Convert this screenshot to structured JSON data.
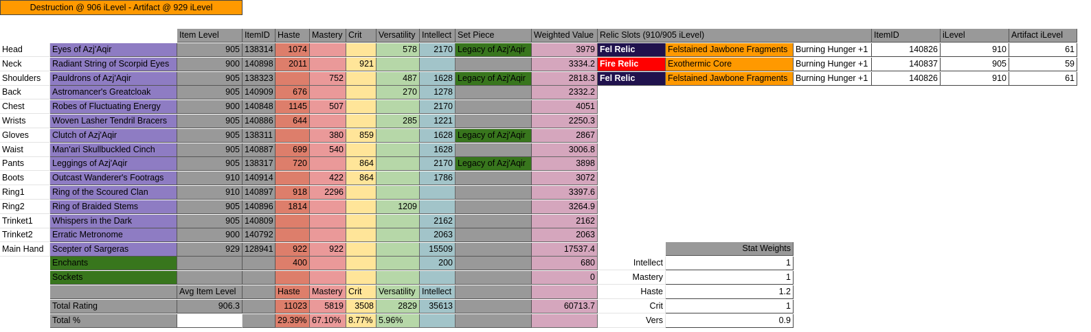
{
  "title": "Destruction @ 906 iLevel - Artifact @ 929 iLevel",
  "headers": {
    "item_level": "Item Level",
    "itemid": "ItemID",
    "haste": "Haste",
    "mastery": "Mastery",
    "crit": "Crit",
    "versatility": "Versatility",
    "intellect": "Intellect",
    "set_piece": "Set Piece",
    "weighted_value": "Weighted Value"
  },
  "gear": [
    {
      "slot": "Head",
      "name": "Eyes of Azj'Aqir",
      "ilvl": "905",
      "id": "138314",
      "haste": "1074",
      "mastery": "",
      "crit": "",
      "vers": "578",
      "intel": "2170",
      "set": "Legacy of Azj'Aqir",
      "weighted": "3979"
    },
    {
      "slot": "Neck",
      "name": "Radiant String of Scorpid Eyes",
      "ilvl": "900",
      "id": "140898",
      "haste": "2011",
      "mastery": "",
      "crit": "921",
      "vers": "",
      "intel": "",
      "set": "",
      "weighted": "3334.2"
    },
    {
      "slot": "Shoulders",
      "name": "Pauldrons of Azj'Aqir",
      "ilvl": "905",
      "id": "138323",
      "haste": "",
      "mastery": "752",
      "crit": "",
      "vers": "487",
      "intel": "1628",
      "set": "Legacy of Azj'Aqir",
      "weighted": "2818.3"
    },
    {
      "slot": "Back",
      "name": "Astromancer's Greatcloak",
      "ilvl": "905",
      "id": "140909",
      "haste": "676",
      "mastery": "",
      "crit": "",
      "vers": "270",
      "intel": "1278",
      "set": "",
      "weighted": "2332.2"
    },
    {
      "slot": "Chest",
      "name": "Robes of Fluctuating Energy",
      "ilvl": "900",
      "id": "140848",
      "haste": "1145",
      "mastery": "507",
      "crit": "",
      "vers": "",
      "intel": "2170",
      "set": "",
      "weighted": "4051"
    },
    {
      "slot": "Wrists",
      "name": "Woven Lasher Tendril Bracers",
      "ilvl": "905",
      "id": "140886",
      "haste": "644",
      "mastery": "",
      "crit": "",
      "vers": "285",
      "intel": "1221",
      "set": "",
      "weighted": "2250.3"
    },
    {
      "slot": "Gloves",
      "name": "Clutch of Azj'Aqir",
      "ilvl": "905",
      "id": "138311",
      "haste": "",
      "mastery": "380",
      "crit": "859",
      "vers": "",
      "intel": "1628",
      "set": "Legacy of Azj'Aqir",
      "weighted": "2867"
    },
    {
      "slot": "Waist",
      "name": "Man'ari Skullbuckled Cinch",
      "ilvl": "905",
      "id": "140887",
      "haste": "699",
      "mastery": "540",
      "crit": "",
      "vers": "",
      "intel": "1628",
      "set": "",
      "weighted": "3006.8"
    },
    {
      "slot": "Pants",
      "name": "Leggings of Azj'Aqir",
      "ilvl": "905",
      "id": "138317",
      "haste": "720",
      "mastery": "",
      "crit": "864",
      "vers": "",
      "intel": "2170",
      "set": "Legacy of Azj'Aqir",
      "weighted": "3898"
    },
    {
      "slot": "Boots",
      "name": "Outcast Wanderer's Footrags",
      "ilvl": "910",
      "id": "140914",
      "haste": "",
      "mastery": "422",
      "crit": "864",
      "vers": "",
      "intel": "1786",
      "set": "",
      "weighted": "3072"
    },
    {
      "slot": "Ring1",
      "name": "Ring of the Scoured Clan",
      "ilvl": "910",
      "id": "140897",
      "haste": "918",
      "mastery": "2296",
      "crit": "",
      "vers": "",
      "intel": "",
      "set": "",
      "weighted": "3397.6"
    },
    {
      "slot": "Ring2",
      "name": "Ring of Braided Stems",
      "ilvl": "905",
      "id": "140896",
      "haste": "1814",
      "mastery": "",
      "crit": "",
      "vers": "1209",
      "intel": "",
      "set": "",
      "weighted": "3264.9"
    },
    {
      "slot": "Trinket1",
      "name": "Whispers in the Dark",
      "ilvl": "905",
      "id": "140809",
      "haste": "",
      "mastery": "",
      "crit": "",
      "vers": "",
      "intel": "2162",
      "set": "",
      "weighted": "2162"
    },
    {
      "slot": "Trinket2",
      "name": "Erratic Metronome",
      "ilvl": "900",
      "id": "140792",
      "haste": "",
      "mastery": "",
      "crit": "",
      "vers": "",
      "intel": "2063",
      "set": "",
      "weighted": "2063"
    },
    {
      "slot": "Main Hand",
      "name": "Scepter of Sargeras",
      "ilvl": "929",
      "id": "128941",
      "haste": "922",
      "mastery": "922",
      "crit": "",
      "vers": "",
      "intel": "15509",
      "set": "",
      "weighted": "17537.4"
    }
  ],
  "enchants": {
    "label": "Enchants",
    "haste": "400",
    "intel": "200",
    "weighted": "680"
  },
  "sockets": {
    "label": "Sockets",
    "weighted": "0"
  },
  "summary": {
    "avg_label": "Avg Item Level",
    "avg_value": "906.3",
    "haste": "Haste",
    "mastery": "Mastery",
    "crit": "Crit",
    "vers": "Versatility",
    "intel": "Intellect",
    "total_rating_label": "Total Rating",
    "total_haste": "11023",
    "total_mastery": "5819",
    "total_crit": "3508",
    "total_vers": "2829",
    "total_intel": "35613",
    "total_weighted": "60713.7",
    "total_pct_label": "Total %",
    "pct_haste": "29.39%",
    "pct_mastery": "67.10%",
    "pct_crit": "8.77%",
    "pct_vers": "5.96%"
  },
  "relics": {
    "header": "Relic Slots (910/905 iLevel)",
    "itemid_header": "ItemID",
    "ilevel_header": "iLevel",
    "artifact_header": "Artifact iLevel",
    "rows": [
      {
        "type": "Fel Relic",
        "name": "Felstained Jawbone Fragments",
        "trait": "Burning Hunger +1",
        "id": "140826",
        "ilvl": "910",
        "art": "61"
      },
      {
        "type": "Fire Relic",
        "name": "Exothermic Core",
        "trait": "Burning Hunger +1",
        "id": "140837",
        "ilvl": "905",
        "art": "59"
      },
      {
        "type": "Fel Relic",
        "name": "Felstained Jawbone Fragments",
        "trait": "Burning Hunger +1",
        "id": "140826",
        "ilvl": "910",
        "art": "61"
      }
    ]
  },
  "stat_weights": {
    "header": "Stat Weights",
    "rows": [
      {
        "stat": "Intellect",
        "value": "1"
      },
      {
        "stat": "Mastery",
        "value": "1"
      },
      {
        "stat": "Haste",
        "value": "1.2"
      },
      {
        "stat": "Crit",
        "value": "1"
      },
      {
        "stat": "Vers",
        "value": "0.9"
      }
    ]
  },
  "colors": {
    "title": "#ff9900",
    "gray": "#999999",
    "purple": "#8e7cc3",
    "haste": "#dd7e6b",
    "mastery": "#ea9999",
    "crit": "#ffe599",
    "vers": "#b6d7a8",
    "intellect": "#a2c4c9",
    "set_green": "#38761d",
    "weighted": "#d5a6bd",
    "fel": "#20124d",
    "fire": "#ff0000",
    "relic_name": "#ff9900"
  }
}
